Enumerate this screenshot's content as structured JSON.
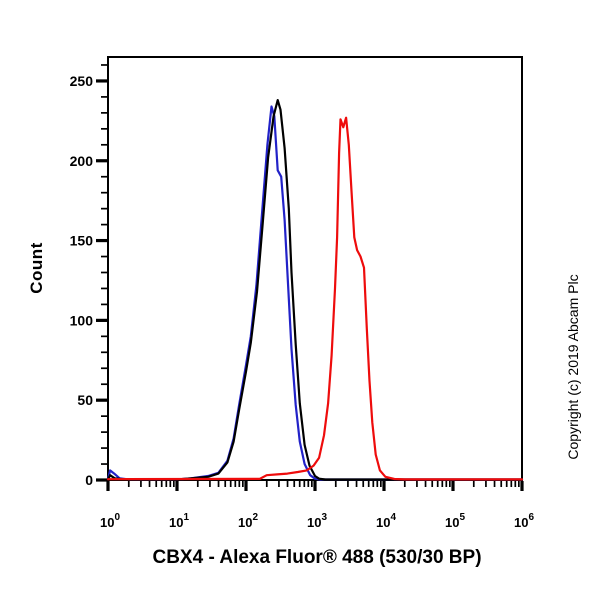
{
  "chart_data": {
    "type": "line",
    "title": "CBX4 - Alexa Fluor® 488 (530/30 BP)",
    "ylabel": "Count",
    "xlabel": "",
    "copyright": "Copyright (c) 2019 Abcam Plc",
    "x_scale": "log10",
    "xlim_log": [
      0,
      6
    ],
    "ylim": [
      0,
      265
    ],
    "x_decades": [
      0,
      1,
      2,
      3,
      4,
      5,
      6
    ],
    "x_tick_base": "10",
    "yticks": [
      0,
      50,
      100,
      150,
      200,
      250
    ],
    "y_minor_step": 10,
    "grid": "off",
    "legend": "none",
    "frame_color": "#000000",
    "background_color": "#ffffff",
    "series": [
      {
        "name": "blue",
        "color": "#2222c8",
        "points": [
          [
            0,
            0.5
          ],
          [
            0.03,
            6
          ],
          [
            0.09,
            4
          ],
          [
            0.17,
            1
          ],
          [
            0.3,
            0.3
          ],
          [
            1.0,
            0.3
          ],
          [
            1.2,
            1
          ],
          [
            1.45,
            2.5
          ],
          [
            1.6,
            4.5
          ],
          [
            1.73,
            12
          ],
          [
            1.82,
            26
          ],
          [
            1.9,
            47
          ],
          [
            2.0,
            72
          ],
          [
            2.07,
            90
          ],
          [
            2.15,
            122
          ],
          [
            2.23,
            166
          ],
          [
            2.31,
            210
          ],
          [
            2.37,
            234
          ],
          [
            2.41,
            228
          ],
          [
            2.44,
            207
          ],
          [
            2.46,
            194
          ],
          [
            2.51,
            190
          ],
          [
            2.56,
            163
          ],
          [
            2.61,
            122
          ],
          [
            2.66,
            82
          ],
          [
            2.72,
            47
          ],
          [
            2.78,
            24
          ],
          [
            2.85,
            10
          ],
          [
            2.93,
            3
          ],
          [
            3.0,
            0.8
          ],
          [
            3.08,
            0.3
          ],
          [
            6,
            0.3
          ]
        ]
      },
      {
        "name": "black",
        "color": "#000000",
        "points": [
          [
            0,
            0.3
          ],
          [
            0.03,
            3
          ],
          [
            0.1,
            1
          ],
          [
            0.25,
            0.3
          ],
          [
            1.0,
            0.3
          ],
          [
            1.2,
            1
          ],
          [
            1.45,
            2
          ],
          [
            1.6,
            4
          ],
          [
            1.73,
            11
          ],
          [
            1.82,
            24
          ],
          [
            1.9,
            44
          ],
          [
            2.0,
            68
          ],
          [
            2.07,
            86
          ],
          [
            2.16,
            118
          ],
          [
            2.24,
            160
          ],
          [
            2.32,
            202
          ],
          [
            2.4,
            228
          ],
          [
            2.46,
            238
          ],
          [
            2.5,
            232
          ],
          [
            2.56,
            208
          ],
          [
            2.62,
            170
          ],
          [
            2.66,
            130
          ],
          [
            2.72,
            85
          ],
          [
            2.78,
            48
          ],
          [
            2.85,
            22
          ],
          [
            2.92,
            9
          ],
          [
            3.0,
            2.5
          ],
          [
            3.06,
            0.8
          ],
          [
            3.15,
            0.3
          ],
          [
            6,
            0.3
          ]
        ]
      },
      {
        "name": "red",
        "color": "#ee0c0c",
        "points": [
          [
            0,
            0.5
          ],
          [
            2.2,
            0.7
          ],
          [
            2.3,
            3
          ],
          [
            2.45,
            3.5
          ],
          [
            2.6,
            4
          ],
          [
            2.75,
            5
          ],
          [
            2.88,
            6
          ],
          [
            2.98,
            9
          ],
          [
            3.06,
            14
          ],
          [
            3.13,
            28
          ],
          [
            3.19,
            48
          ],
          [
            3.24,
            78
          ],
          [
            3.29,
            120
          ],
          [
            3.32,
            152
          ],
          [
            3.35,
            205
          ],
          [
            3.37,
            226
          ],
          [
            3.41,
            221
          ],
          [
            3.45,
            227
          ],
          [
            3.49,
            210
          ],
          [
            3.53,
            180
          ],
          [
            3.57,
            152
          ],
          [
            3.61,
            144
          ],
          [
            3.66,
            140
          ],
          [
            3.71,
            133
          ],
          [
            3.75,
            95
          ],
          [
            3.79,
            62
          ],
          [
            3.83,
            36
          ],
          [
            3.88,
            16
          ],
          [
            3.94,
            6
          ],
          [
            4.02,
            2
          ],
          [
            4.15,
            0.6
          ],
          [
            4.3,
            0.4
          ],
          [
            6,
            0.4
          ]
        ]
      }
    ]
  }
}
